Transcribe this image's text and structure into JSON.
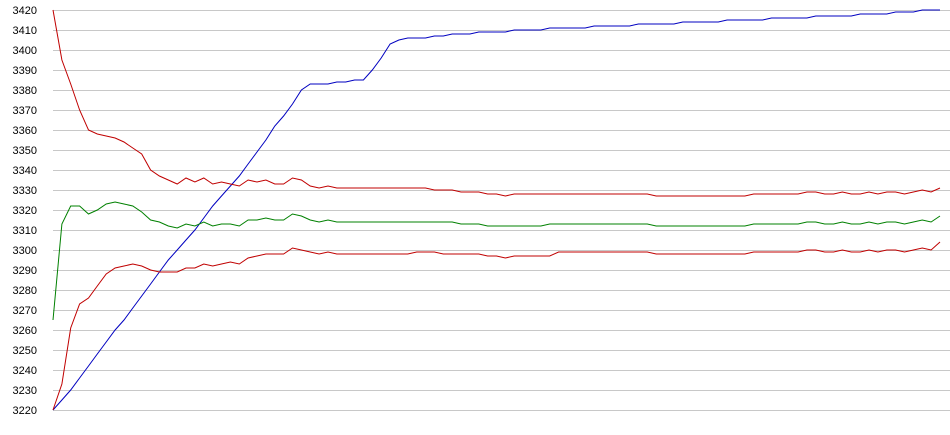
{
  "chart_data": {
    "type": "line",
    "title": "",
    "xlabel": "",
    "ylabel": "",
    "ylim": [
      3220,
      3420
    ],
    "yticks": [
      3220,
      3230,
      3240,
      3250,
      3260,
      3270,
      3280,
      3290,
      3300,
      3310,
      3320,
      3330,
      3340,
      3350,
      3360,
      3370,
      3380,
      3390,
      3400,
      3410,
      3420
    ],
    "grid": true,
    "x": [
      0,
      1,
      2,
      3,
      4,
      5,
      6,
      7,
      8,
      9,
      10,
      11,
      12,
      13,
      14,
      15,
      16,
      17,
      18,
      19,
      20,
      21,
      22,
      23,
      24,
      25,
      26,
      27,
      28,
      29,
      30,
      31,
      32,
      33,
      34,
      35,
      36,
      37,
      38,
      39,
      40,
      41,
      42,
      43,
      44,
      45,
      46,
      47,
      48,
      49,
      50,
      51,
      52,
      53,
      54,
      55,
      56,
      57,
      58,
      59,
      60,
      61,
      62,
      63,
      64,
      65,
      66,
      67,
      68,
      69,
      70,
      71,
      72,
      73,
      74,
      75,
      76,
      77,
      78,
      79,
      80,
      81,
      82,
      83,
      84,
      85,
      86,
      87,
      88,
      89,
      90,
      91,
      92,
      93,
      94,
      95,
      96,
      97,
      98,
      99,
      100
    ],
    "series": [
      {
        "color": "#0000c0",
        "values": [
          3220,
          3225,
          3230,
          3236,
          3242,
          3248,
          3254,
          3260,
          3265,
          3271,
          3277,
          3283,
          3289,
          3295,
          3300,
          3305,
          3310,
          3316,
          3322,
          3327,
          3332,
          3337,
          3343,
          3349,
          3355,
          3362,
          3367,
          3373,
          3380,
          3383,
          3383,
          3383,
          3384,
          3384,
          3385,
          3385,
          3390,
          3396,
          3403,
          3405,
          3406,
          3406,
          3406,
          3407,
          3407,
          3408,
          3408,
          3408,
          3409,
          3409,
          3409,
          3409,
          3410,
          3410,
          3410,
          3410,
          3411,
          3411,
          3411,
          3411,
          3411,
          3412,
          3412,
          3412,
          3412,
          3412,
          3413,
          3413,
          3413,
          3413,
          3413,
          3414,
          3414,
          3414,
          3414,
          3414,
          3415,
          3415,
          3415,
          3415,
          3415,
          3416,
          3416,
          3416,
          3416,
          3416,
          3417,
          3417,
          3417,
          3417,
          3417,
          3418,
          3418,
          3418,
          3418,
          3419,
          3419,
          3419,
          3420,
          3420,
          3420
        ]
      },
      {
        "color": "#c00000",
        "values": [
          3420,
          3395,
          3383,
          3370,
          3360,
          3358,
          3357,
          3356,
          3354,
          3351,
          3348,
          3340,
          3337,
          3335,
          3333,
          3336,
          3334,
          3336,
          3333,
          3334,
          3333,
          3332,
          3335,
          3334,
          3335,
          3333,
          3333,
          3336,
          3335,
          3332,
          3331,
          3332,
          3331,
          3331,
          3331,
          3331,
          3331,
          3331,
          3331,
          3331,
          3331,
          3331,
          3331,
          3330,
          3330,
          3330,
          3329,
          3329,
          3329,
          3328,
          3328,
          3327,
          3328,
          3328,
          3328,
          3328,
          3328,
          3328,
          3328,
          3328,
          3328,
          3328,
          3328,
          3328,
          3328,
          3328,
          3328,
          3328,
          3327,
          3327,
          3327,
          3327,
          3327,
          3327,
          3327,
          3327,
          3327,
          3327,
          3327,
          3328,
          3328,
          3328,
          3328,
          3328,
          3328,
          3329,
          3329,
          3328,
          3328,
          3329,
          3328,
          3328,
          3329,
          3328,
          3329,
          3329,
          3328,
          3329,
          3330,
          3329,
          3331
        ]
      },
      {
        "color": "#008000",
        "values": [
          3265,
          3313,
          3322,
          3322,
          3318,
          3320,
          3323,
          3324,
          3323,
          3322,
          3319,
          3315,
          3314,
          3312,
          3311,
          3313,
          3312,
          3314,
          3312,
          3313,
          3313,
          3312,
          3315,
          3315,
          3316,
          3315,
          3315,
          3318,
          3317,
          3315,
          3314,
          3315,
          3314,
          3314,
          3314,
          3314,
          3314,
          3314,
          3314,
          3314,
          3314,
          3314,
          3314,
          3314,
          3314,
          3314,
          3313,
          3313,
          3313,
          3312,
          3312,
          3312,
          3312,
          3312,
          3312,
          3312,
          3313,
          3313,
          3313,
          3313,
          3313,
          3313,
          3313,
          3313,
          3313,
          3313,
          3313,
          3313,
          3312,
          3312,
          3312,
          3312,
          3312,
          3312,
          3312,
          3312,
          3312,
          3312,
          3312,
          3313,
          3313,
          3313,
          3313,
          3313,
          3313,
          3314,
          3314,
          3313,
          3313,
          3314,
          3313,
          3313,
          3314,
          3313,
          3314,
          3314,
          3313,
          3314,
          3315,
          3314,
          3317
        ]
      },
      {
        "color": "#c00000",
        "values": [
          3220,
          3233,
          3261,
          3273,
          3276,
          3282,
          3288,
          3291,
          3292,
          3293,
          3292,
          3290,
          3289,
          3289,
          3289,
          3291,
          3291,
          3293,
          3292,
          3293,
          3294,
          3293,
          3296,
          3297,
          3298,
          3298,
          3298,
          3301,
          3300,
          3299,
          3298,
          3299,
          3298,
          3298,
          3298,
          3298,
          3298,
          3298,
          3298,
          3298,
          3298,
          3299,
          3299,
          3299,
          3298,
          3298,
          3298,
          3298,
          3298,
          3297,
          3297,
          3296,
          3297,
          3297,
          3297,
          3297,
          3297,
          3299,
          3299,
          3299,
          3299,
          3299,
          3299,
          3299,
          3299,
          3299,
          3299,
          3299,
          3298,
          3298,
          3298,
          3298,
          3298,
          3298,
          3298,
          3298,
          3298,
          3298,
          3298,
          3299,
          3299,
          3299,
          3299,
          3299,
          3299,
          3300,
          3300,
          3299,
          3299,
          3300,
          3299,
          3299,
          3300,
          3299,
          3300,
          3300,
          3299,
          3300,
          3301,
          3300,
          3304
        ]
      }
    ]
  }
}
